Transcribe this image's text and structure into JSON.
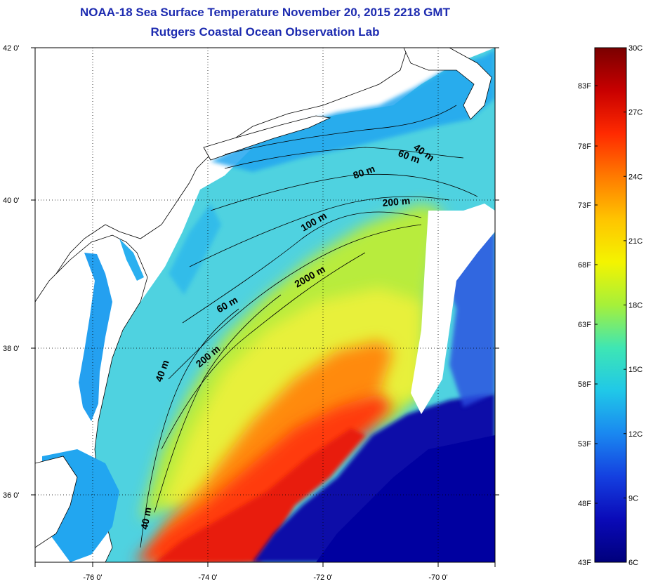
{
  "title": {
    "line1": "NOAA-18 Sea Surface Temperature November 20, 2015 2218 GMT",
    "line2": "Rutgers Coastal Ocean Observation Lab"
  },
  "map": {
    "lat_labels": [
      "42 0'",
      "40 0'",
      "38 0'",
      "36 0'"
    ],
    "lon_labels": [
      "-76 0'",
      "-74 0'",
      "-72 0'",
      "-70 0'"
    ],
    "contour_labels": [
      "40 m",
      "60 m",
      "80 m",
      "200 m",
      "100 m",
      "2000 m",
      "60 m",
      "200 m",
      "40 m",
      "40 m"
    ]
  },
  "colorbar": {
    "fahrenheit": [
      "83F",
      "78F",
      "73F",
      "68F",
      "63F",
      "58F",
      "53F",
      "48F",
      "43F"
    ],
    "celsius": [
      "30C",
      "27C",
      "24C",
      "21C",
      "18C",
      "15C",
      "12C",
      "9C",
      "6C"
    ],
    "gradient_stops": [
      "#7a0000",
      "#c80000",
      "#ff2a00",
      "#ff7a00",
      "#ffc400",
      "#f4f400",
      "#a6f03a",
      "#3ee6b4",
      "#20c8e8",
      "#1a88f0",
      "#1440e0",
      "#0a0ab8",
      "#00007c"
    ]
  },
  "colors": {
    "land": "#ffffff",
    "title": "#1d2bb0",
    "cold_water": "#0a0aa0",
    "coastal": "#23aaf0",
    "shelf": "#5fd8d8",
    "slope": "#e8f040",
    "gulf_stream": "#ff3a10"
  }
}
